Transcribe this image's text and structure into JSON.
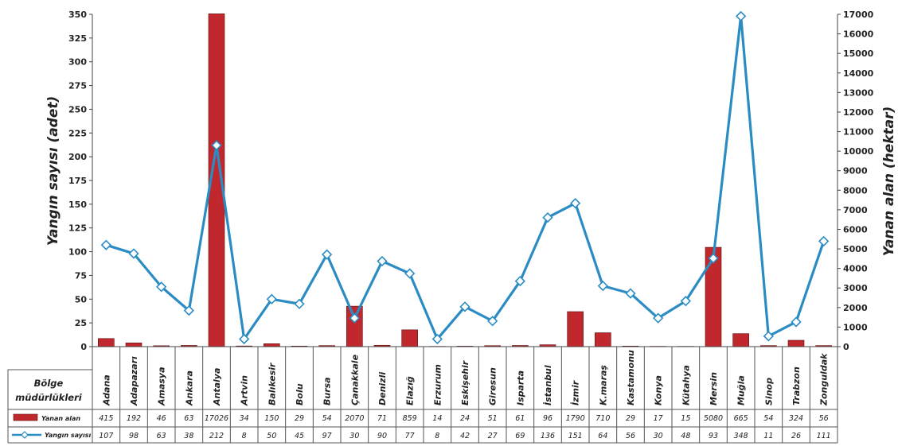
{
  "chart_data": {
    "type": "bar",
    "categories": [
      "Adana",
      "Adapazarı",
      "Amasya",
      "Ankara",
      "Antalya",
      "Artvin",
      "Balıkesir",
      "Bolu",
      "Bursa",
      "Çanakkale",
      "Denizli",
      "Elazığ",
      "Erzurum",
      "Eskişehir",
      "Giresun",
      "Isparta",
      "İstanbul",
      "İzmir",
      "K.maraş",
      "Kastamonu",
      "Konya",
      "Kütahya",
      "Mersin",
      "Muğla",
      "Sinop",
      "Trabzon",
      "Zonguldak"
    ],
    "series": [
      {
        "name": "Yanan alan",
        "type": "bar",
        "axis": "right",
        "color": "#c0282d",
        "values": [
          415,
          192,
          46,
          63,
          17026,
          34,
          150,
          29,
          54,
          2070,
          71,
          859,
          14,
          24,
          51,
          61,
          96,
          1790,
          710,
          29,
          17,
          15,
          5080,
          665,
          54,
          324,
          56
        ]
      },
      {
        "name": "Yangın sayısı",
        "type": "line",
        "axis": "left",
        "color": "#2b8cc4",
        "values": [
          107,
          98,
          63,
          38,
          212,
          8,
          50,
          45,
          97,
          30,
          90,
          77,
          8,
          42,
          27,
          69,
          136,
          151,
          64,
          56,
          30,
          48,
          93,
          348,
          11,
          26,
          111
        ]
      }
    ],
    "ylabel": "Yangın sayısı (adet)",
    "y2label": "Yanan alan (hektar)",
    "ylim": [
      0,
      350
    ],
    "y2lim": [
      0,
      17000
    ],
    "yticks": [
      "0",
      "25",
      "50",
      "75",
      "100",
      "125",
      "150",
      "175",
      "200",
      "225",
      "250",
      "275",
      "300",
      "325",
      "350"
    ],
    "y2ticks": [
      "0",
      "1000",
      "2000",
      "3000",
      "4000",
      "5000",
      "6000",
      "7000",
      "8000",
      "9000",
      "10000",
      "11000",
      "12000",
      "13000",
      "14000",
      "15000",
      "16000",
      "17000"
    ],
    "table_header": "Bölge müdürlükleri",
    "table_header_line1": "Bölge",
    "table_header_line2": "müdürlükleri",
    "legend": [
      "Yanan alan",
      "Yangın sayısı"
    ]
  }
}
